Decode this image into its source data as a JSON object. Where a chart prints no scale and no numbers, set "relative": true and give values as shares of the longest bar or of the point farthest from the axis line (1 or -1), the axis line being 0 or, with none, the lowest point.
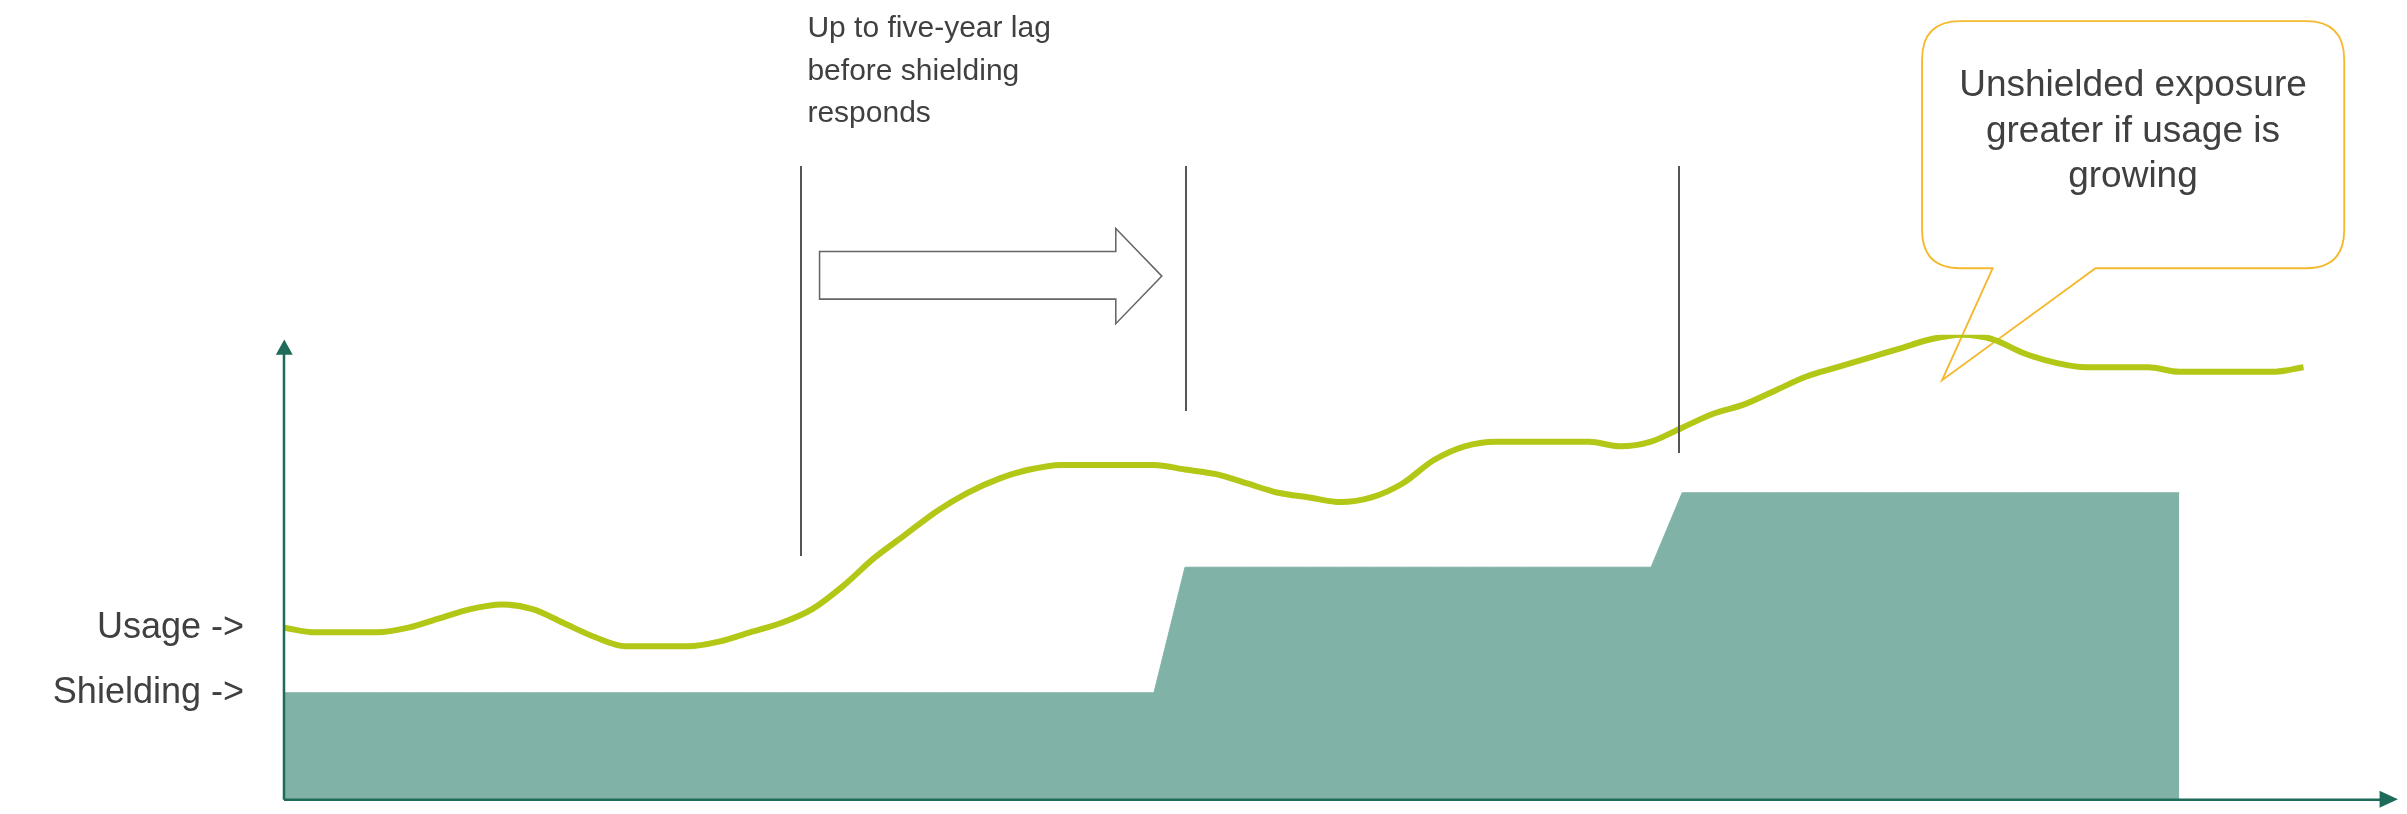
{
  "chart_data": {
    "type": "line",
    "relative": true,
    "legend": false,
    "categories": [
      null,
      null,
      null,
      null,
      null,
      null,
      null,
      null,
      null,
      null,
      null,
      null,
      null,
      null,
      null,
      null,
      null,
      null,
      null,
      null,
      null,
      null,
      null,
      null,
      null,
      null,
      null,
      null,
      null,
      null,
      null,
      null,
      null,
      null,
      null,
      null,
      null,
      null,
      null,
      null,
      null,
      null,
      null,
      null,
      null,
      null,
      null,
      null,
      null,
      null,
      null,
      null,
      null,
      null,
      null,
      null,
      null,
      null,
      null,
      null,
      null,
      null,
      null,
      null,
      null,
      null,
      null,
      null
    ],
    "series": [
      {
        "color": "#b3c716",
        "values": [
          0.37,
          0.36,
          0.36,
          0.36,
          0.37,
          0.39,
          0.41,
          0.42,
          0.41,
          0.38,
          0.35,
          0.33,
          0.33,
          0.33,
          0.34,
          0.36,
          0.38,
          0.41,
          0.46,
          0.52,
          0.57,
          0.62,
          0.66,
          0.69,
          0.71,
          0.72,
          0.72,
          0.72,
          0.72,
          0.71,
          0.7,
          0.68,
          0.66,
          0.65,
          0.64,
          0.65,
          0.68,
          0.73,
          0.76,
          0.77,
          0.77,
          0.77,
          0.77,
          0.76,
          0.77,
          0.8,
          0.83,
          0.85,
          0.88,
          0.91,
          0.93,
          0.95,
          0.97,
          0.99,
          1,
          0.99,
          0.96,
          0.94,
          0.93,
          0.93,
          0.93,
          0.92,
          0.92,
          0.92,
          0.92,
          0.93,
          null,
          null
        ]
      },
      {
        "type": "area",
        "color": "#80b2a8",
        "values": [
          0.23,
          0.23,
          0.23,
          0.23,
          0.23,
          0.23,
          0.23,
          0.23,
          0.23,
          0.23,
          0.23,
          0.23,
          0.23,
          0.23,
          0.23,
          0.23,
          0.23,
          0.23,
          0.23,
          0.23,
          0.23,
          0.23,
          0.23,
          0.23,
          0.23,
          0.23,
          0.23,
          0.23,
          0.23,
          0.5,
          0.5,
          0.5,
          0.5,
          0.5,
          0.5,
          0.5,
          0.5,
          0.5,
          0.5,
          0.5,
          0.5,
          0.5,
          0.5,
          0.5,
          0.5,
          0.66,
          0.66,
          0.66,
          0.66,
          0.66,
          0.66,
          0.66,
          0.66,
          0.66,
          0.66,
          0.66,
          0.66,
          0.66,
          0.66,
          0.66,
          0.66,
          0.66,
          null,
          null,
          null,
          null,
          null,
          null
        ]
      }
    ],
    "annotations": [
      "Usage ->",
      "Shielding ->",
      "Up to five-year lag before shielding responds",
      "Unshielded exposure greater if usage is growing"
    ]
  }
}
